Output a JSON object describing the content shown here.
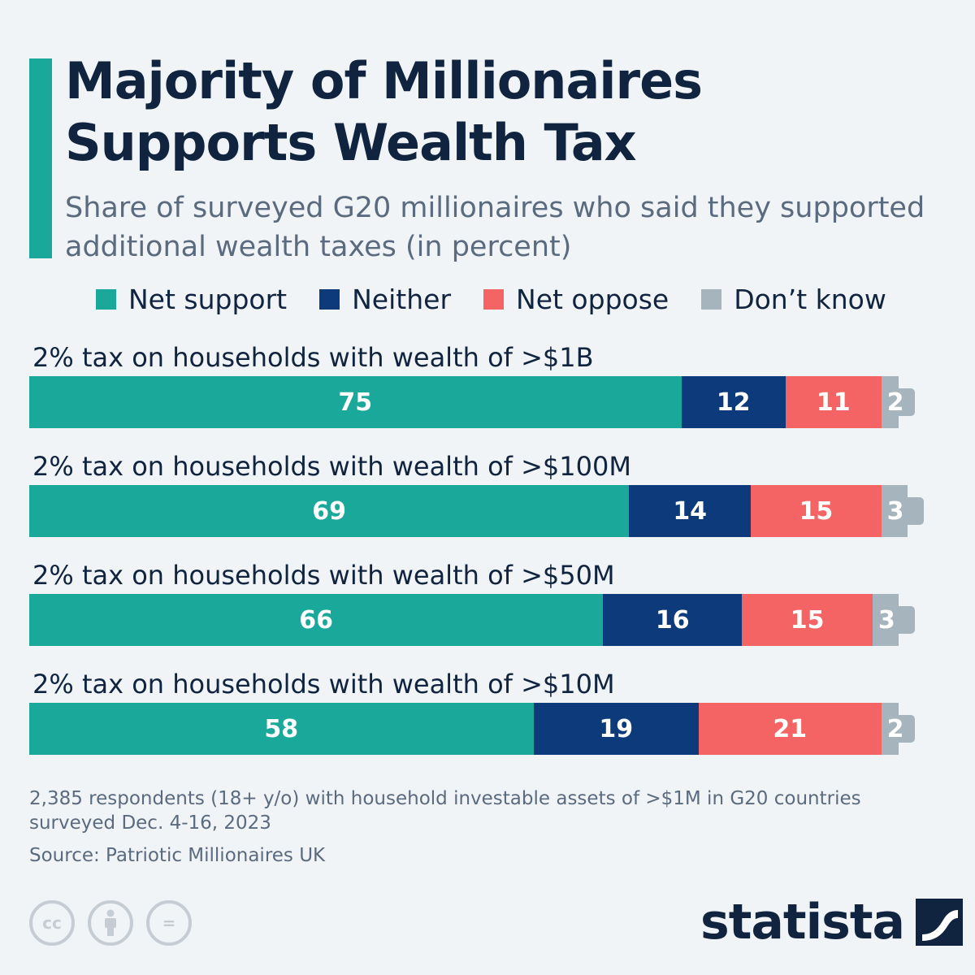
{
  "title": "Majority of Millionaires Supports Wealth Tax",
  "subtitle": "Share of surveyed G20 millionaires who said they supported additional wealth taxes (in percent)",
  "colors": {
    "accent": "#1aa89a",
    "net_support": "#1aa89a",
    "neither": "#0d3a7a",
    "net_oppose": "#f46464",
    "dont_know": "#a5b4bd",
    "text_dark": "#10243f",
    "text_muted": "#5a6b7f"
  },
  "legend": {
    "net_support": "Net support",
    "neither": "Neither",
    "net_oppose": "Net oppose",
    "dont_know": "Don’t know"
  },
  "chart_data": {
    "type": "bar",
    "orientation": "horizontal",
    "stacked": true,
    "categories": [
      "2% tax on households with wealth of >$1B",
      "2% tax on households with wealth of >$100M",
      "2% tax on households with wealth of >$50M",
      "2% tax on households with wealth of >$10M"
    ],
    "series": [
      {
        "name": "Net support",
        "values": [
          75,
          69,
          66,
          58
        ]
      },
      {
        "name": "Neither",
        "values": [
          12,
          14,
          16,
          19
        ]
      },
      {
        "name": "Net oppose",
        "values": [
          11,
          15,
          15,
          21
        ]
      },
      {
        "name": "Don’t know",
        "values": [
          2,
          3,
          3,
          2
        ]
      }
    ],
    "xlim": [
      0,
      100
    ],
    "legend_position": "top",
    "grid": false,
    "data_labels": true
  },
  "footnote": "2,385 respondents (18+ y/o) with household investable assets of >$1M in G20 countries surveyed Dec. 4-16, 2023",
  "source": "Source: Patriotic Millionaires UK",
  "license_icons": [
    "creative-commons-icon",
    "attribution-icon",
    "no-derivatives-icon"
  ],
  "license_text": {
    "cc": "cc",
    "nd": "="
  },
  "brand": "statista"
}
